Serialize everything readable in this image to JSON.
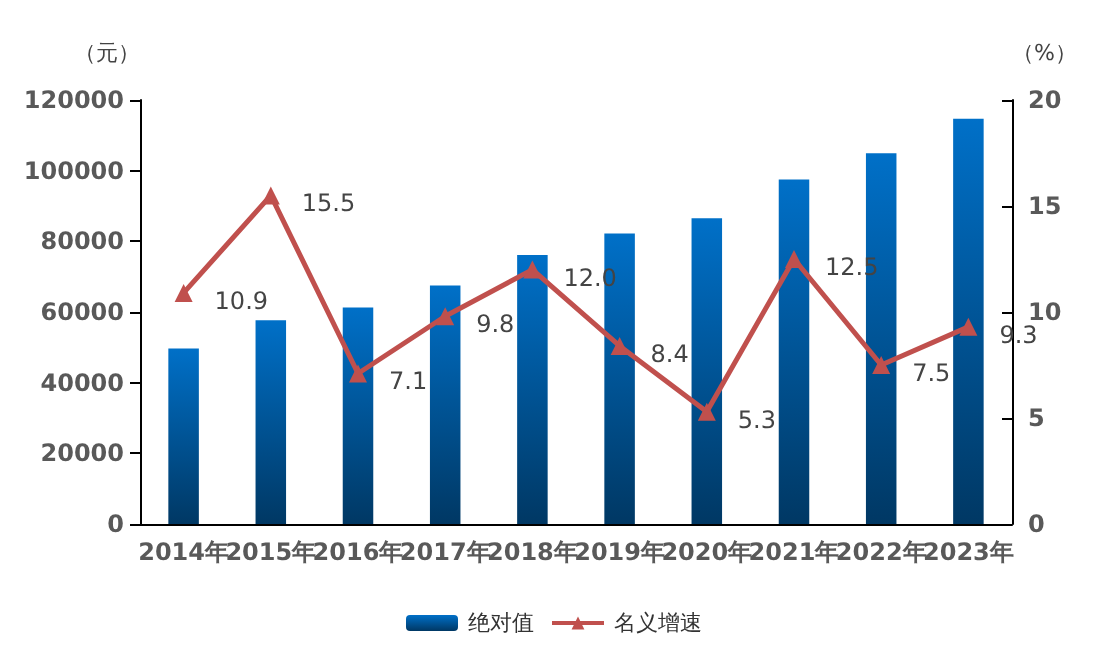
{
  "chart_data": {
    "type": "bar",
    "ylabel": "（元）",
    "y2label": "（%）",
    "categories": [
      "2014年",
      "2015年",
      "2016年",
      "2017年",
      "2018年",
      "2019年",
      "2020年",
      "2021年",
      "2022年",
      "2023年"
    ],
    "series": [
      {
        "name": "绝对值",
        "color": "#0070c8",
        "values": [
          49700,
          57700,
          61300,
          67500,
          76100,
          82200,
          86500,
          97500,
          104900,
          114700
        ]
      },
      {
        "name": "名义增速",
        "type": "line",
        "axis": "y2",
        "color": "#c0504d",
        "marker": "triangle",
        "values": [
          10.9,
          15.5,
          7.1,
          9.8,
          12.0,
          8.4,
          5.3,
          12.5,
          7.5,
          9.3
        ],
        "value_labels": [
          "10.9",
          "15.5",
          "7.1",
          "9.8",
          "12.0",
          "8.4",
          "5.3",
          "12.5",
          "7.5",
          "9.3"
        ]
      }
    ],
    "ylim": [
      0,
      120000
    ],
    "yticks": [
      0,
      20000,
      40000,
      60000,
      80000,
      100000,
      120000
    ],
    "y2lim": [
      0,
      20
    ],
    "y2ticks": [
      0,
      5,
      10,
      15,
      20
    ],
    "grid": false,
    "legend": "bottom"
  }
}
